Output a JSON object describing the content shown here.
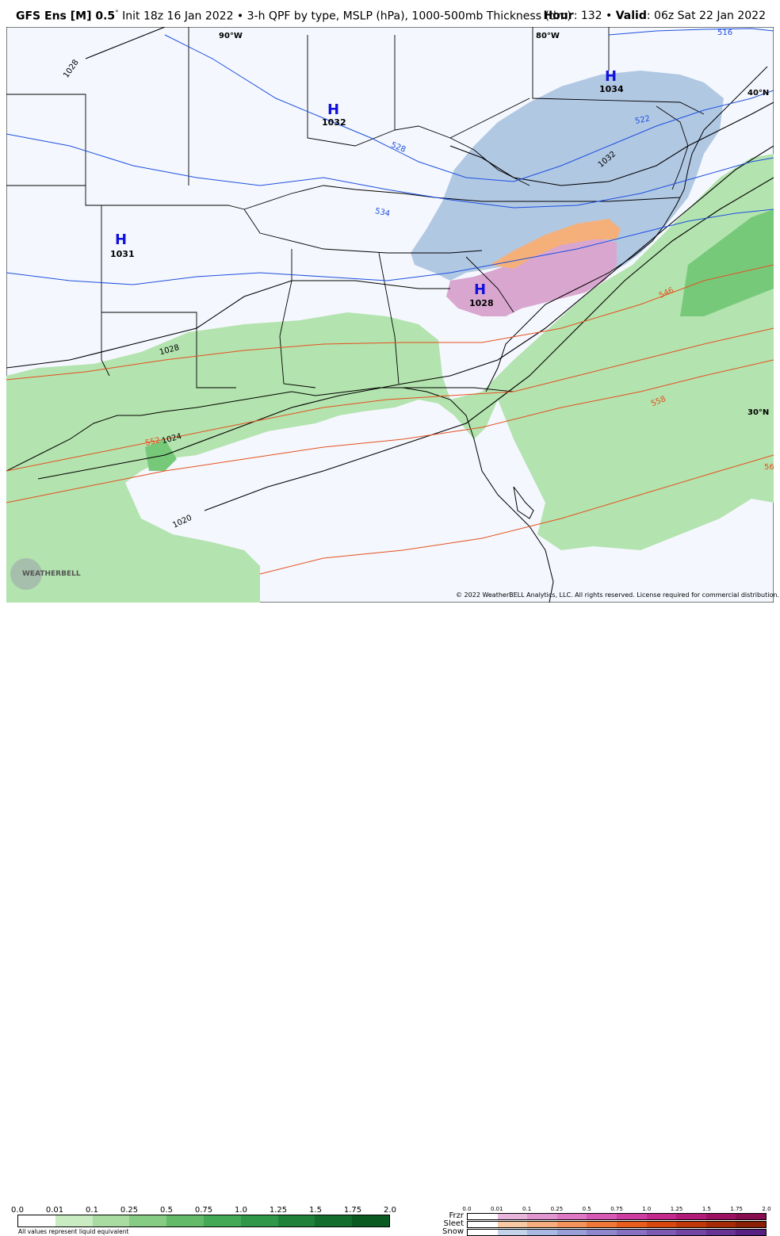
{
  "header": {
    "model": "GFS Ens [M] 0.5",
    "degree_mark": "°",
    "description": "Init 18z 16 Jan 2022 • 3-h QPF by type, MSLP (hPa), 1000-500mb Thickness (dm)",
    "hour_label": "Hour",
    "hour_value": ": 132 • ",
    "valid_label": "Valid",
    "valid_value": ": 06z Sat 22 Jan 2022"
  },
  "map": {
    "longitude_labels": [
      "90°W",
      "80°W"
    ],
    "latitude_labels": [
      "40°N",
      "30°N"
    ],
    "highs": [
      {
        "letter": "H",
        "value": "1032"
      },
      {
        "letter": "H",
        "value": "1034"
      },
      {
        "letter": "H",
        "value": "1031"
      },
      {
        "letter": "H",
        "value": "1028"
      }
    ],
    "isobar_labels": [
      "1028",
      "1032",
      "1028",
      "1024",
      "1020"
    ],
    "thickness_labels_blue": [
      "516",
      "522",
      "528",
      "534"
    ],
    "thickness_labels_red": [
      "546",
      "552",
      "558",
      "56"
    ],
    "colors": {
      "rain_light": "#b3e3ae",
      "rain_medium": "#77c97a",
      "snow": "#b1c8e3",
      "sleet": "#f5b07a",
      "freezing_rain": "#d9a6cf",
      "background": "#f4f7fd",
      "isobar": "#000000",
      "thickness_cold": "#1d4fe0",
      "thickness_warm": "#e5501f"
    }
  },
  "watermark": "WEATHERBELL",
  "copyright": "© 2022 WeatherBELL Analytics, LLC. All rights reserved. License required for commercial distribution.",
  "legend": {
    "qpf_ticks": [
      "0.0",
      "0.01",
      "0.1",
      "0.25",
      "0.5",
      "0.75",
      "1.0",
      "1.25",
      "1.5",
      "1.75",
      "2.0"
    ],
    "qpf_colors": [
      "#ffffff",
      "#c9ecc3",
      "#a9dca0",
      "#86cc84",
      "#63bb6a",
      "#44a957",
      "#2f9748",
      "#20823a",
      "#136d2d",
      "#0b5a22"
    ],
    "qpf_note": "All values represent liquid equivalent",
    "ptype_ticks": [
      "0.0",
      "0.01",
      "0.1",
      "0.25",
      "0.5",
      "0.75",
      "1.0",
      "1.25",
      "1.5",
      "1.75",
      "2.0"
    ],
    "frzr_label": "Frzr",
    "sleet_label": "Sleet",
    "snow_label": "Snow",
    "frzr_colors": [
      "#ffffff",
      "#e8b5dc",
      "#e296d0",
      "#dd78c5",
      "#d65ab5",
      "#cd3ea2",
      "#c22a8d",
      "#b01c77",
      "#9c1263",
      "#870c50"
    ],
    "sleet_colors": [
      "#ffffff",
      "#f9c9a3",
      "#f6ad7e",
      "#f3925b",
      "#ef7738",
      "#e85d1c",
      "#d8480e",
      "#c03708",
      "#a52a05",
      "#8a1f03"
    ],
    "snow_colors": [
      "#ffffff",
      "#c3d3ec",
      "#a8b9e3",
      "#9a9fd8",
      "#8f87cc",
      "#8670bf",
      "#7d5ab2",
      "#7245a3",
      "#663293",
      "#581f82"
    ]
  }
}
